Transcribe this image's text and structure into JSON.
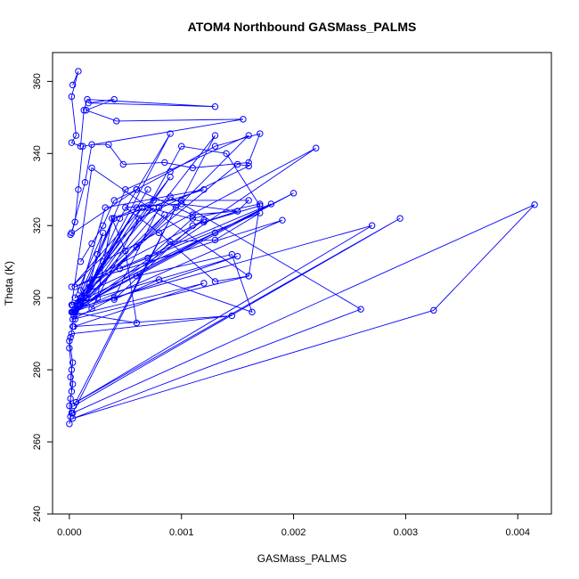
{
  "chart_data": {
    "type": "line",
    "title": "ATOM4 Northbound GASMass_PALMS",
    "xlabel": "GASMass_PALMS",
    "ylabel": "Theta (K)",
    "xlim": [
      -0.00015,
      0.0043
    ],
    "ylim": [
      240,
      368
    ],
    "x_ticks": [
      {
        "value": 0.0,
        "label": "0.000"
      },
      {
        "value": 0.001,
        "label": "0.001"
      },
      {
        "value": 0.002,
        "label": "0.002"
      },
      {
        "value": 0.003,
        "label": "0.003"
      },
      {
        "value": 0.004,
        "label": "0.004"
      }
    ],
    "y_ticks": [
      {
        "value": 240,
        "label": "240"
      },
      {
        "value": 260,
        "label": "260"
      },
      {
        "value": 280,
        "label": "280"
      },
      {
        "value": 300,
        "label": "300"
      },
      {
        "value": 320,
        "label": "320"
      },
      {
        "value": 340,
        "label": "340"
      },
      {
        "value": 360,
        "label": "360"
      }
    ],
    "grid": false,
    "legend": "none",
    "series_color": "#0000ff",
    "series": [
      {
        "x": [
          0.0,
          2e-05,
          1e-05,
          3e-05,
          2e-05,
          0.0,
          1e-05,
          3e-05,
          4e-05,
          0.0001,
          0.0006,
          0.0015,
          0.0016,
          0.00062,
          0.0002,
          0.0001,
          0.00032,
          0.0012,
          0.0004,
          5e-05,
          0.0022,
          0.0003,
          8e-05,
          0.0007,
          0.00018,
          5e-05,
          0.00045,
          0.0009,
          0.0001,
          0.0016,
          0.0005,
          3e-05,
          0.001,
          0.0013,
          0.0008,
          0.0004,
          3e-05,
          0.0016,
          0.0002,
          2e-05,
          0.0015,
          3e-05,
          0.0019,
          0.0002,
          0.0009,
          0.00015,
          0.0003,
          5e-05,
          0.0013,
          0.0001,
          0.0006,
          2e-05,
          0.0006,
          0.0005,
          0.00038,
          0.00025,
          3e-05,
          0.0012,
          5e-05,
          0.0018,
          0.0001,
          0.002,
          5e-05,
          0.0027,
          6e-05,
          0.00295,
          4e-05,
          0.00095,
          3e-05,
          0.00415,
          0.00325,
          3e-05,
          0.0026,
          0.0009,
          5e-05,
          0.00065,
          2e-05,
          0.00075,
          3e-05,
          0.00085,
          4e-05,
          0.0012,
          4e-05,
          0.00145,
          2e-05,
          0.0,
          3e-05,
          1e-05,
          2e-05,
          0.0,
          1e-05
        ],
        "y": [
          265.0,
          268.0,
          272.0,
          276.0,
          280.0,
          286.0,
          289.0,
          292.0,
          296.0,
          300.0,
          314.0,
          337.0,
          336.5,
          322.0,
          297.0,
          302.0,
          325.0,
          330.0,
          322.0,
          296.0,
          341.5,
          310.0,
          298.0,
          330.0,
          303.0,
          294.0,
          322.0,
          345.5,
          298.0,
          345.0,
          330.0,
          296.0,
          327.0,
          345.0,
          325.0,
          300.0,
          294.0,
          306.0,
          336.0,
          298.0,
          311.5,
          296.0,
          321.5,
          305.0,
          333.5,
          300.0,
          318.0,
          300.0,
          318.0,
          298.0,
          325.0,
          296.0,
          293.0,
          313.0,
          322.0,
          300.0,
          296.0,
          321.5,
          303.0,
          326.0,
          299.0,
          329.0,
          297.0,
          320.0,
          271.0,
          322.0,
          270.0,
          325.0,
          268.0,
          325.8,
          296.5,
          266.5,
          296.8,
          328.0,
          297.0,
          325.0,
          303.0,
          325.0,
          298.0,
          323.0,
          295.0,
          304.0,
          292.0,
          295.0,
          290.0,
          288.0,
          282.0,
          278.0,
          274.0,
          270.0,
          267.0
        ]
      },
      {
        "x": [
          3e-05,
          8e-05,
          2e-05,
          6e-05,
          2e-05,
          0.0001,
          0.00013,
          0.00016,
          0.0013,
          0.00017,
          0.0004,
          0.00015,
          0.00042,
          0.00155,
          0.00012,
          8e-05,
          5e-05,
          2e-05,
          0.00014,
          0.0002,
          0.00035,
          0.00048,
          0.00085,
          0.0011,
          0.0016,
          0.0017,
          0.0013,
          0.0009,
          0.0006,
          0.0004,
          0.0003,
          0.0002,
          0.0001
        ],
        "y": [
          359.0,
          362.8,
          355.8,
          345.0,
          343.0,
          342.0,
          352.0,
          355.0,
          353.0,
          354.0,
          355.0,
          352.0,
          349.0,
          349.5,
          342.0,
          330.0,
          321.0,
          318.0,
          332.0,
          342.5,
          342.5,
          337.0,
          337.5,
          336.0,
          337.5,
          345.5,
          342.0,
          335.0,
          330.0,
          327.0,
          320.0,
          315.0,
          310.0
        ]
      },
      {
        "x": [
          1e-05,
          0.0006,
          0.0011,
          0.0015,
          0.001,
          0.0005,
          0.0008,
          0.0013,
          0.0016,
          0.0017,
          0.0011,
          0.0007,
          0.00045,
          0.0017,
          0.0013,
          0.0009,
          0.0006,
          0.00145,
          0.00163,
          0.0008,
          0.0004,
          0.0011,
          0.0017,
          0.0014,
          0.001,
          0.0007,
          0.0012,
          0.0015,
          0.0016,
          0.00075,
          0.0004,
          0.00025
        ],
        "y": [
          317.5,
          330.0,
          323.0,
          324.0,
          326.0,
          325.0,
          318.0,
          304.5,
          306.0,
          326.0,
          322.0,
          311.0,
          308.0,
          323.5,
          316.0,
          315.5,
          306.0,
          312.0,
          296.0,
          305.0,
          299.5,
          320.0,
          325.5,
          340.0,
          342.0,
          325.0,
          321.0,
          324.0,
          327.0,
          327.0,
          322.0,
          312.0
        ]
      }
    ]
  }
}
